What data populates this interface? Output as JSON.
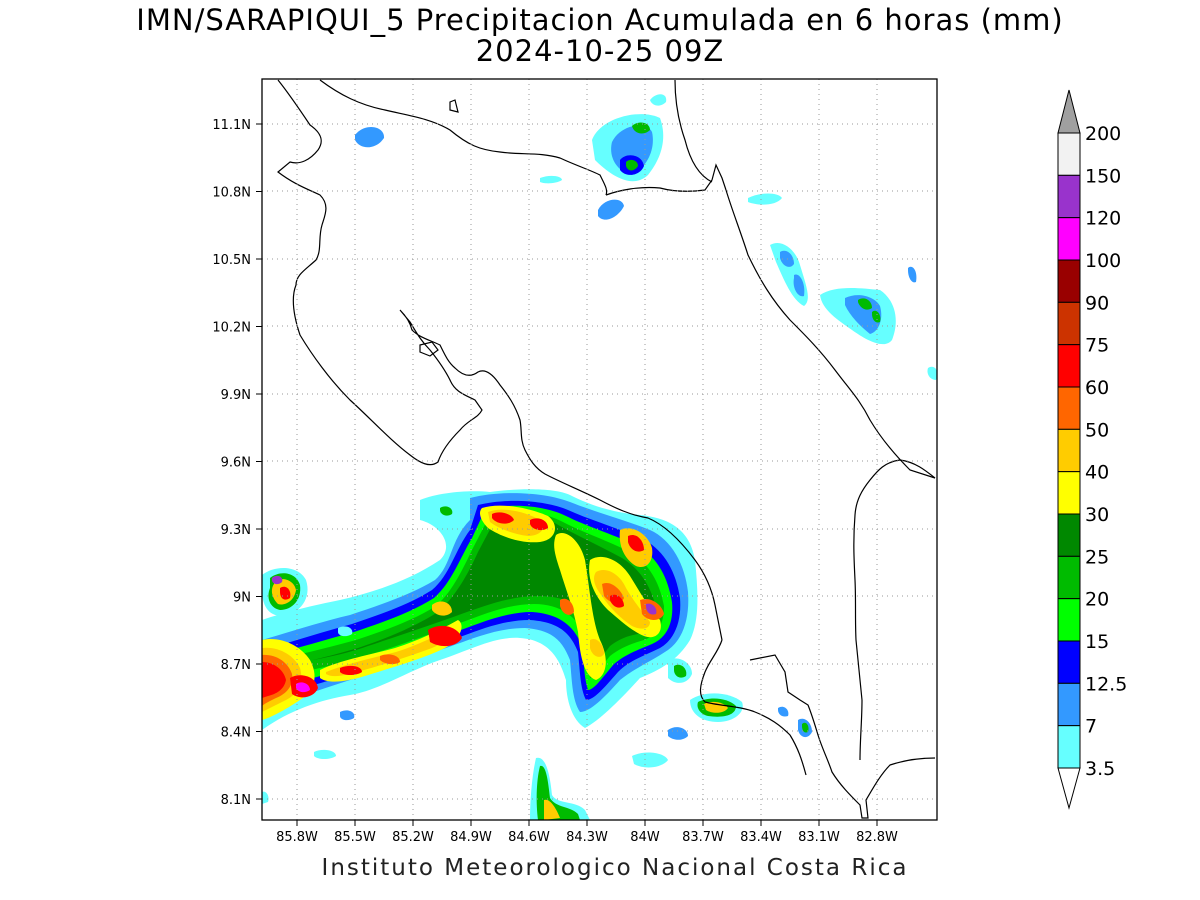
{
  "title": {
    "line1": "IMN/SARAPIQUI_5 Precipitacion Acumulada en 6 horas (mm)",
    "line2": "2024-10-25 09Z"
  },
  "footer": "Instituto Meteorologico Nacional Costa Rica",
  "map": {
    "lon_ticks": [
      "85.8W",
      "85.5W",
      "85.2W",
      "84.9W",
      "84.6W",
      "84.3W",
      "84W",
      "83.7W",
      "83.4W",
      "83.1W",
      "82.8W"
    ],
    "lat_ticks": [
      "11.1N",
      "10.8N",
      "10.5N",
      "10.2N",
      "9.9N",
      "9.6N",
      "9.3N",
      "9N",
      "8.7N",
      "8.4N",
      "8.1N"
    ],
    "grid": "dotted"
  },
  "colorbar": {
    "labels": [
      "200",
      "150",
      "120",
      "100",
      "90",
      "75",
      "60",
      "50",
      "40",
      "30",
      "25",
      "20",
      "15",
      "12.5",
      "7",
      "3.5"
    ],
    "colors": [
      "#f2f2f2",
      "#9933cc",
      "#ff00ff",
      "#990000",
      "#cc3300",
      "#ff0000",
      "#ff6600",
      "#ffcc00",
      "#ffff00",
      "#008800",
      "#00bb00",
      "#00ff00",
      "#0000ff",
      "#3399ff",
      "#66ffff"
    ],
    "top_triangle_color": "#a0a0a0",
    "bottom_triangle_color": "#ffffff"
  }
}
